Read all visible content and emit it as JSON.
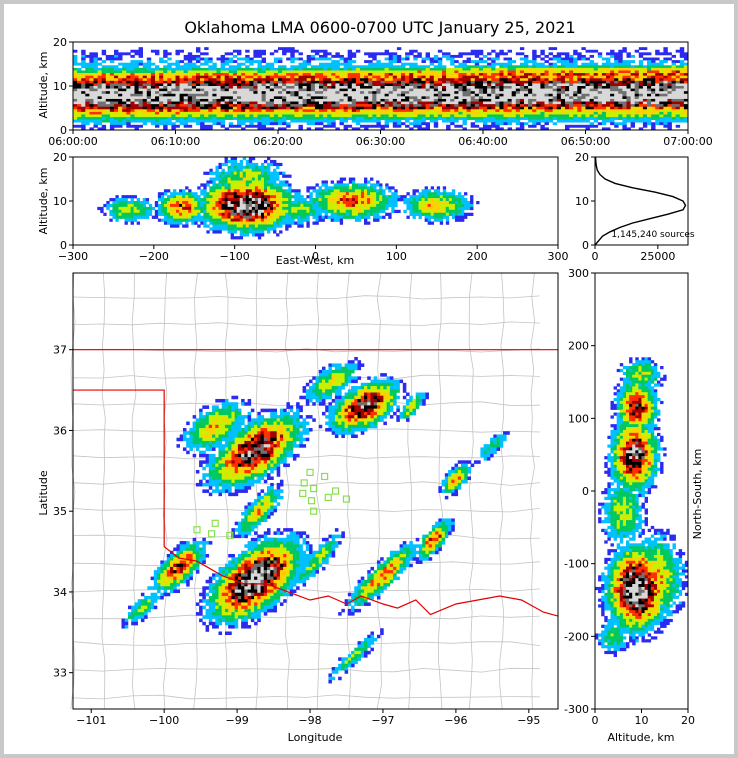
{
  "chart_data": {
    "title": "Oklahoma LMA 0600-0700 UTC January 25, 2021",
    "colors": [
      "#2a2af0",
      "#00c0ff",
      "#00c860",
      "#c8f000",
      "#ffd000",
      "#ff3000",
      "#a00000",
      "#000000",
      "#707070",
      "#d8d8d8"
    ],
    "panels": {
      "time_height": {
        "type": "heatmap",
        "xticks": [
          "06:00:00",
          "06:10:00",
          "06:20:00",
          "06:30:00",
          "06:40:00",
          "06:50:00",
          "07:00:00"
        ],
        "xlim": [
          0,
          60
        ],
        "ylim": [
          0,
          20
        ],
        "yticks": [
          0,
          10,
          20
        ],
        "ylabel": "Altitude, km",
        "bands": [
          {
            "center": 8,
            "width": 4.5,
            "intensity": 1.0
          },
          {
            "center": 11.5,
            "width": 2.0,
            "intensity": 0.55
          }
        ]
      },
      "ew_height": {
        "type": "heatmap",
        "xlim": [
          -300,
          300
        ],
        "xticks": [
          -300,
          -200,
          -100,
          0,
          100,
          200,
          300
        ],
        "ylim": [
          0,
          20
        ],
        "yticks": [
          0,
          10,
          20
        ],
        "xlabel": "East-West, km",
        "ylabel": "Altitude, km",
        "blobs": [
          {
            "x": -85,
            "y": 9,
            "rx": 45,
            "ry": 4.5,
            "v": 1.0
          },
          {
            "x": -165,
            "y": 8.5,
            "rx": 25,
            "ry": 3,
            "v": 0.6
          },
          {
            "x": -230,
            "y": 8,
            "rx": 30,
            "ry": 2.5,
            "v": 0.35
          },
          {
            "x": 45,
            "y": 10,
            "rx": 45,
            "ry": 3.5,
            "v": 0.55
          },
          {
            "x": 150,
            "y": 9,
            "rx": 35,
            "ry": 3,
            "v": 0.45
          },
          {
            "x": -85,
            "y": 15,
            "rx": 40,
            "ry": 4,
            "v": 0.35
          },
          {
            "x": -20,
            "y": 8,
            "rx": 30,
            "ry": 3,
            "v": 0.3
          }
        ]
      },
      "alt_hist": {
        "type": "line",
        "xlim": [
          0,
          37000
        ],
        "xticks": [
          0,
          25000
        ],
        "ylim": [
          0,
          20
        ],
        "yticks": [
          0,
          10,
          20
        ],
        "x": [
          0,
          1500,
          3000,
          6000,
          10000,
          15000,
          22000,
          29000,
          35000,
          36000,
          35000,
          31000,
          24000,
          15000,
          8000,
          4000,
          2000,
          900,
          500,
          300,
          200
        ],
        "y": [
          0,
          1,
          2,
          3,
          4,
          5,
          6,
          7,
          8,
          9,
          10,
          11,
          12,
          13,
          14,
          15,
          16,
          17,
          18,
          19,
          20
        ],
        "annotation": "1,145,240 sources"
      },
      "plan_view": {
        "type": "heatmap",
        "xlim": [
          -101.25,
          -94.6
        ],
        "ylim": [
          32.55,
          37.95
        ],
        "xticks": [
          -101,
          -100,
          -99,
          -98,
          -97,
          -96,
          -95
        ],
        "yticks": [
          33,
          34,
          35,
          36,
          37
        ],
        "xlabel": "Longitude",
        "ylabel": "Latitude",
        "blobs": [
          {
            "lon": -98.75,
            "lat": 34.15,
            "rx": 0.55,
            "ry": 0.28,
            "angle": -35,
            "v": 1.0
          },
          {
            "lon": -98.75,
            "lat": 35.75,
            "rx": 0.55,
            "ry": 0.25,
            "angle": -30,
            "v": 0.85
          },
          {
            "lon": -99.3,
            "lat": 36.05,
            "rx": 0.4,
            "ry": 0.2,
            "angle": -30,
            "v": 0.45
          },
          {
            "lon": -97.25,
            "lat": 36.3,
            "rx": 0.4,
            "ry": 0.2,
            "angle": -25,
            "v": 0.8
          },
          {
            "lon": -97.7,
            "lat": 36.6,
            "rx": 0.35,
            "ry": 0.15,
            "angle": -30,
            "v": 0.4
          },
          {
            "lon": -99.8,
            "lat": 34.3,
            "rx": 0.35,
            "ry": 0.15,
            "angle": -40,
            "v": 0.65
          },
          {
            "lon": -98.7,
            "lat": 35.0,
            "rx": 0.35,
            "ry": 0.12,
            "angle": -45,
            "v": 0.45
          },
          {
            "lon": -97.0,
            "lat": 34.2,
            "rx": 0.5,
            "ry": 0.12,
            "angle": -40,
            "v": 0.55
          },
          {
            "lon": -96.3,
            "lat": 34.65,
            "rx": 0.25,
            "ry": 0.1,
            "angle": -45,
            "v": 0.6
          },
          {
            "lon": -97.9,
            "lat": 34.4,
            "rx": 0.4,
            "ry": 0.1,
            "angle": -45,
            "v": 0.35
          },
          {
            "lon": -96.0,
            "lat": 35.4,
            "rx": 0.2,
            "ry": 0.1,
            "angle": -45,
            "v": 0.5
          },
          {
            "lon": -96.6,
            "lat": 36.3,
            "rx": 0.2,
            "ry": 0.08,
            "angle": -45,
            "v": 0.4
          },
          {
            "lon": -97.4,
            "lat": 33.2,
            "rx": 0.4,
            "ry": 0.08,
            "angle": -40,
            "v": 0.3
          },
          {
            "lon": -100.3,
            "lat": 33.8,
            "rx": 0.3,
            "ry": 0.1,
            "angle": -40,
            "v": 0.3
          },
          {
            "lon": -95.5,
            "lat": 35.8,
            "rx": 0.25,
            "ry": 0.08,
            "angle": -40,
            "v": 0.25
          }
        ],
        "stations": [
          [
            -98.0,
            35.48
          ],
          [
            -97.8,
            35.43
          ],
          [
            -98.08,
            35.35
          ],
          [
            -97.95,
            35.28
          ],
          [
            -97.65,
            35.25
          ],
          [
            -98.1,
            35.22
          ],
          [
            -97.75,
            35.17
          ],
          [
            -97.5,
            35.15
          ],
          [
            -97.98,
            35.13
          ],
          [
            -97.95,
            35.0
          ],
          [
            -99.55,
            34.77
          ],
          [
            -99.35,
            34.72
          ],
          [
            -99.1,
            34.7
          ],
          [
            -99.3,
            34.85
          ]
        ]
      },
      "ns_height": {
        "type": "heatmap",
        "xlim": [
          0,
          20
        ],
        "xticks": [
          0,
          10,
          20
        ],
        "ylim": [
          -300,
          300
        ],
        "yticks": [
          -300,
          -200,
          -100,
          0,
          100,
          200,
          300
        ],
        "xlabel": "Altitude, km",
        "ylabel": "North-South, km",
        "blobs": [
          {
            "x": 9,
            "y": -135,
            "rx": 5,
            "ry": 45,
            "v": 1.0
          },
          {
            "x": 8.5,
            "y": 50,
            "rx": 4,
            "ry": 40,
            "v": 0.85
          },
          {
            "x": 9,
            "y": 115,
            "rx": 3.5,
            "ry": 30,
            "v": 0.7
          },
          {
            "x": 6,
            "y": -30,
            "rx": 4,
            "ry": 40,
            "v": 0.35
          },
          {
            "x": 13,
            "y": -120,
            "rx": 5,
            "ry": 50,
            "v": 0.45
          },
          {
            "x": 10,
            "y": 160,
            "rx": 4,
            "ry": 20,
            "v": 0.35
          },
          {
            "x": 4,
            "y": -200,
            "rx": 3,
            "ry": 20,
            "v": 0.3
          }
        ]
      }
    }
  }
}
